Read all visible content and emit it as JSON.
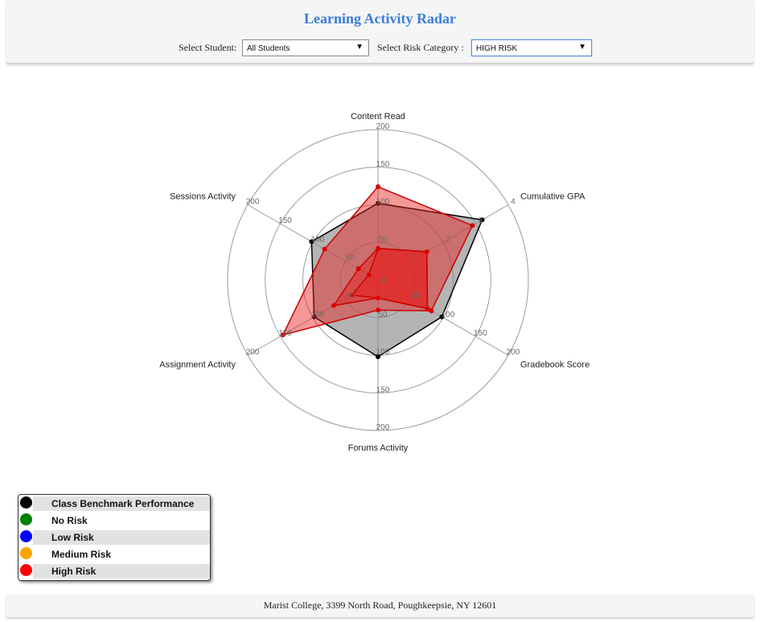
{
  "header": {
    "title": "Learning Activity Radar",
    "student_label": "Select Student:",
    "student_value": "All Students",
    "risk_label": "Select Risk Category :",
    "risk_value": "HIGH RISK"
  },
  "chart_data": {
    "type": "radar",
    "axes": [
      {
        "name": "Content Read",
        "ticks": [
          "50",
          "100",
          "150",
          "200"
        ],
        "max": 200
      },
      {
        "name": "Cumulative GPA",
        "ticks": [
          "1",
          "2",
          "3",
          "4"
        ],
        "max": 4
      },
      {
        "name": "Gradebook Score",
        "ticks": [
          "50",
          "100",
          "150",
          "200"
        ],
        "max": 200
      },
      {
        "name": "Forums Activity",
        "ticks": [
          "50",
          "100",
          "150",
          "200"
        ],
        "max": 200
      },
      {
        "name": "Assignment Activity",
        "ticks": [
          "50",
          "100",
          "150",
          "200"
        ],
        "max": 200
      },
      {
        "name": "Sessions Activity",
        "ticks": [
          "50",
          "100",
          "150",
          "200"
        ],
        "max": 200
      }
    ],
    "center_label": "0",
    "series": [
      {
        "name": "Class Benchmark Performance",
        "color": "#000000",
        "values": [
          102,
          3.2,
          98,
          102,
          98,
          102
        ]
      },
      {
        "name": "High Risk",
        "color": "#ff0000",
        "values": [
          124,
          2.9,
          82,
          40,
          146,
          82
        ]
      },
      {
        "name": "High Risk",
        "color": "#ff0000",
        "values": [
          42,
          1.5,
          76,
          24,
          68,
          30
        ]
      },
      {
        "name": "High Risk",
        "color": "#ff0000",
        "values": [
          42,
          1.5,
          76,
          24,
          40,
          14
        ]
      }
    ]
  },
  "legend": {
    "items": [
      {
        "label": "Class Benchmark Performance",
        "color": "#000000"
      },
      {
        "label": "No Risk",
        "color": "#008000"
      },
      {
        "label": "Low Risk",
        "color": "#0000ff"
      },
      {
        "label": "Medium Risk",
        "color": "#ffa500"
      },
      {
        "label": "High Risk",
        "color": "#ff0000"
      }
    ]
  },
  "footer": {
    "address": "Marist College, 3399 North Road, Poughkeepsie, NY 12601"
  }
}
